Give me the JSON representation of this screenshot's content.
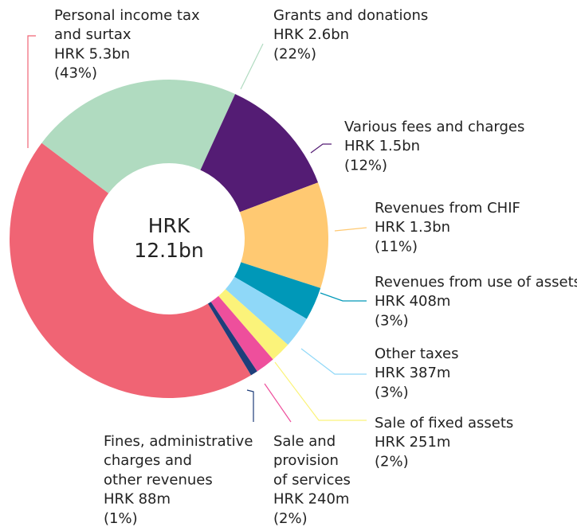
{
  "chart_data": {
    "type": "donut",
    "center_label": [
      "HRK",
      "12.1bn"
    ],
    "categories": [
      [
        "Personal income tax",
        "and surtax"
      ],
      [
        "Grants and donations"
      ],
      [
        "Various fees and charges"
      ],
      [
        "Revenues from CHIF"
      ],
      [
        "Revenues from use of assets"
      ],
      [
        "Other taxes"
      ],
      [
        "Sale of fixed assets"
      ],
      [
        "Sale and",
        "provision",
        "of services"
      ],
      [
        "Fines, administrative",
        "charges and",
        "other revenues"
      ]
    ],
    "values": [
      5300,
      2600,
      1500,
      1300,
      408,
      387,
      251,
      240,
      88
    ],
    "value_labels": [
      "HRK 5.3bn",
      "HRK 2.6bn",
      "HRK 1.5bn",
      "HRK 1.3bn",
      "HRK 408m",
      "HRK 387m",
      "HRK 251m",
      "HRK 240m",
      "HRK 88m"
    ],
    "percent_labels": [
      "(43%)",
      "(22%)",
      "(12%)",
      "(11%)",
      "(3%)",
      "(3%)",
      "(2%)",
      "(2%)",
      "(1%)"
    ],
    "colors": [
      "#f06474",
      "#b0dbc0",
      "#541c74",
      "#ffc972",
      "#0098b8",
      "#8fd8f8",
      "#fbf37a",
      "#ee4f9c",
      "#1e3e7a"
    ]
  }
}
